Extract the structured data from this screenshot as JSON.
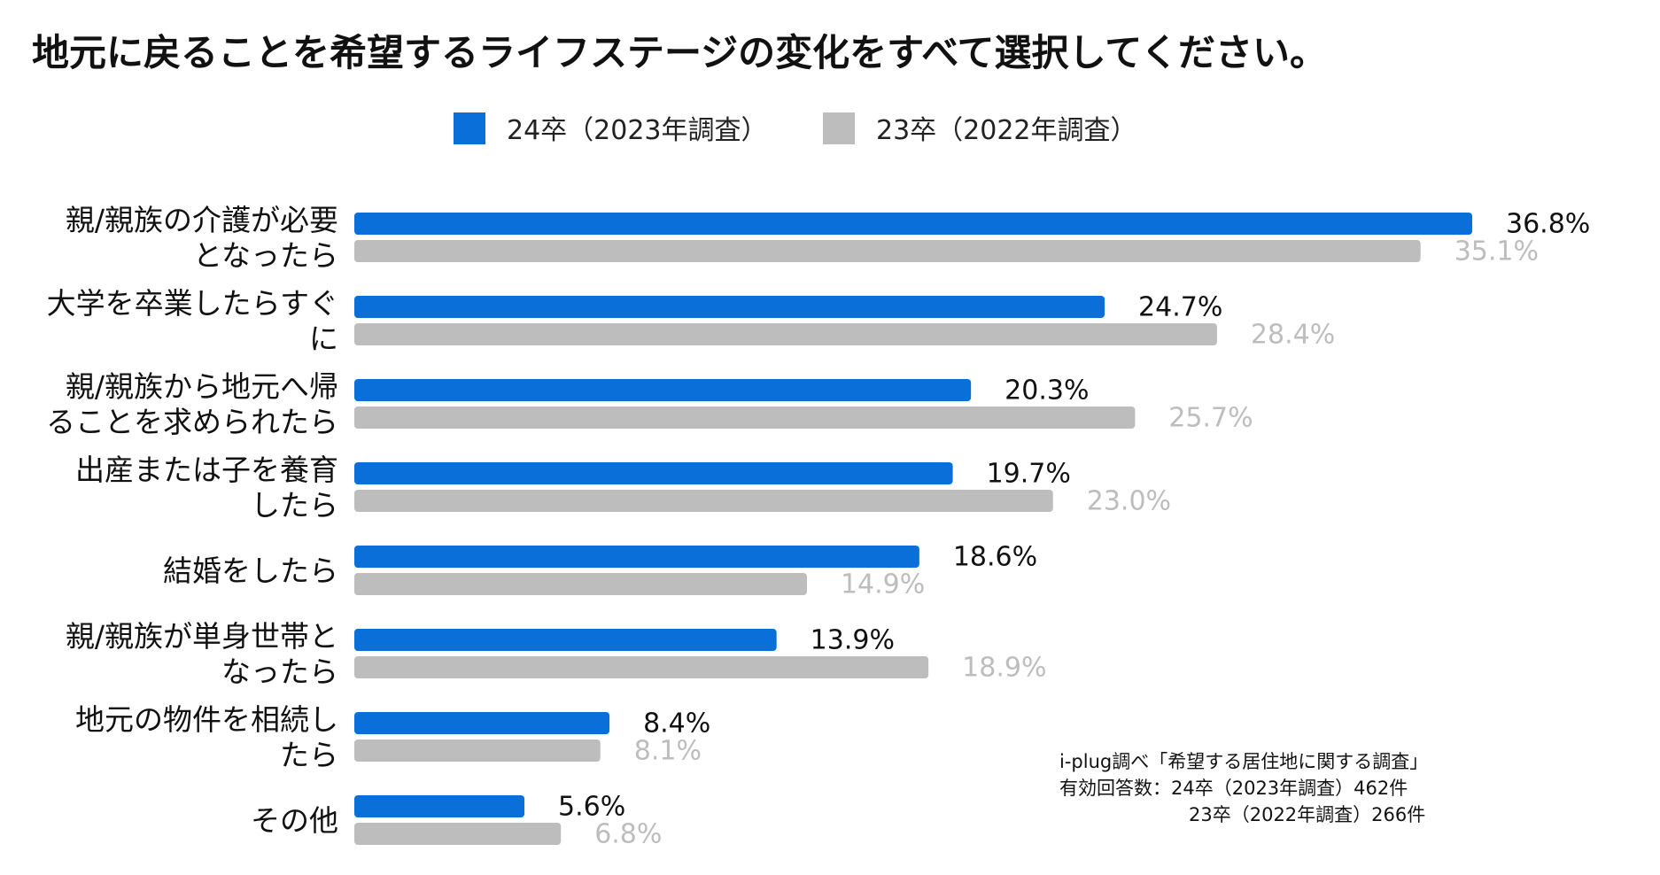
{
  "chart_data": {
    "type": "bar",
    "orientation": "horizontal",
    "title": "地元に戻ることを希望するライフステージの変化をすべて選択してください。",
    "xlim": [
      0,
      40
    ],
    "unit": "%",
    "categories": [
      [
        "親/親族の介護が必要",
        "となったら"
      ],
      [
        "大学を卒業したらすぐ",
        "に"
      ],
      [
        "親/親族から地元へ帰",
        "ることを求められたら"
      ],
      [
        "出産または子を養育",
        "したら"
      ],
      [
        "結婚をしたら"
      ],
      [
        "親/親族が単身世帯と",
        "なったら"
      ],
      [
        "地元の物件を相続し",
        "たら"
      ],
      [
        "その他"
      ]
    ],
    "series": [
      {
        "name": "24卒（2023年調査）",
        "color": "#0a6fd8",
        "values": [
          36.8,
          24.7,
          20.3,
          19.7,
          18.6,
          13.9,
          8.4,
          5.6
        ],
        "labels": [
          "36.8%",
          "24.7%",
          "20.3%",
          "19.7%",
          "18.6%",
          "13.9%",
          "8.4%",
          "5.6%"
        ]
      },
      {
        "name": "23卒（2022年調査）",
        "color": "#bdbdbd",
        "values": [
          35.1,
          28.4,
          25.7,
          23.0,
          14.9,
          18.9,
          8.1,
          6.8
        ],
        "labels": [
          "35.1%",
          "28.4%",
          "25.7%",
          "23.0%",
          "14.9%",
          "18.9%",
          "8.1%",
          "6.8%"
        ]
      }
    ],
    "legend": "top-center"
  },
  "note": {
    "source": "i-plug調べ「希望する居住地に関する調査」",
    "responses_line1": "有効回答数：24卒（2023年調査）462件",
    "responses_line2": "23卒（2022年調査）266件"
  }
}
